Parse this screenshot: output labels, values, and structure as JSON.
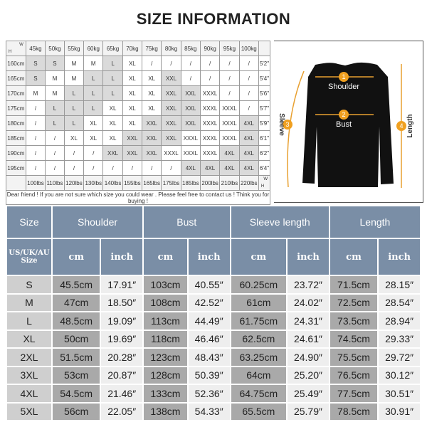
{
  "title": "SIZE INFORMATION",
  "grid": {
    "corner": {
      "h": "H",
      "w": "W"
    },
    "weights": [
      "45kg",
      "50kg",
      "55kg",
      "60kg",
      "65kg",
      "70kg",
      "75kg",
      "80kg",
      "85kg",
      "90kg",
      "95kg",
      "100kg"
    ],
    "rows": [
      {
        "height": "160cm",
        "feet": "5'2\"",
        "sizes": [
          "S",
          "S",
          "M",
          "M",
          "L",
          "XL",
          "/",
          "/",
          "/",
          "/",
          "/",
          "/"
        ]
      },
      {
        "height": "165cm",
        "feet": "5'4\"",
        "sizes": [
          "S",
          "M",
          "M",
          "L",
          "L",
          "XL",
          "XL",
          "XXL",
          "/",
          "/",
          "/",
          "/"
        ]
      },
      {
        "height": "170cm",
        "feet": "5'6\"",
        "sizes": [
          "M",
          "M",
          "L",
          "L",
          "L",
          "XL",
          "XL",
          "XXL",
          "XXL",
          "XXXL",
          "/",
          "/"
        ]
      },
      {
        "height": "175cm",
        "feet": "5'7\"",
        "sizes": [
          "/",
          "L",
          "L",
          "L",
          "XL",
          "XL",
          "XL",
          "XXL",
          "XXL",
          "XXXL",
          "XXXL",
          "/"
        ]
      },
      {
        "height": "180cm",
        "feet": "5'9\"",
        "sizes": [
          "/",
          "L",
          "L",
          "XL",
          "XL",
          "XL",
          "XXL",
          "XXL",
          "XXL",
          "XXXL",
          "XXXL",
          "4XL"
        ]
      },
      {
        "height": "185cm",
        "feet": "6'1\"",
        "sizes": [
          "/",
          "/",
          "XL",
          "XL",
          "XL",
          "XXL",
          "XXL",
          "XXL",
          "XXXL",
          "XXXL",
          "XXXL",
          "4XL"
        ]
      },
      {
        "height": "190cm",
        "feet": "6'2\"",
        "sizes": [
          "/",
          "/",
          "/",
          "/",
          "XXL",
          "XXL",
          "XXL",
          "XXXL",
          "XXXL",
          "XXXL",
          "4XL",
          "4XL"
        ]
      },
      {
        "height": "195cm",
        "feet": "6'4\"",
        "sizes": [
          "/",
          "/",
          "/",
          "/",
          "/",
          "/",
          "/",
          "/",
          "4XL",
          "4XL",
          "4XL",
          "4XL"
        ]
      }
    ],
    "lbs": [
      "100lbs",
      "110lbs",
      "120lbs",
      "130lbs",
      "140lbs",
      "155lbs",
      "165lbs",
      "175lbs",
      "185lbs",
      "200lbs",
      "210lbs",
      "220lbs"
    ],
    "note": "Dear friend ! If you are not sure which size you could wear . Please feel free to contact us ! Think you for buying !"
  },
  "diagram": {
    "shoulder": "Shoulder",
    "bust": "Bust",
    "sleeve": "Sleeve",
    "length": "Length",
    "numbers": [
      "1",
      "2",
      "3",
      "4"
    ],
    "accent": "#f0a020"
  },
  "table": {
    "headers": [
      "Size",
      "Shoulder",
      "Bust",
      "Sleeve length",
      "Length"
    ],
    "size_label": "US/UK/AU Size",
    "cm": "cm",
    "inch": "inch",
    "rows": [
      [
        "S",
        "45.5cm",
        "17.91″",
        "103cm",
        "40.55″",
        "60.25cm",
        "23.72″",
        "71.5cm",
        "28.15″"
      ],
      [
        "M",
        "47cm",
        "18.50″",
        "108cm",
        "42.52″",
        "61cm",
        "24.02″",
        "72.5cm",
        "28.54″"
      ],
      [
        "L",
        "48.5cm",
        "19.09″",
        "113cm",
        "44.49″",
        "61.75cm",
        "24.31″",
        "73.5cm",
        "28.94″"
      ],
      [
        "XL",
        "50cm",
        "19.69″",
        "118cm",
        "46.46″",
        "62.5cm",
        "24.61″",
        "74.5cm",
        "29.33″"
      ],
      [
        "2XL",
        "51.5cm",
        "20.28″",
        "123cm",
        "48.43″",
        "63.25cm",
        "24.90″",
        "75.5cm",
        "29.72″"
      ],
      [
        "3XL",
        "53cm",
        "20.87″",
        "128cm",
        "50.39″",
        "64cm",
        "25.20″",
        "76.5cm",
        "30.12″"
      ],
      [
        "4XL",
        "54.5cm",
        "21.46″",
        "133cm",
        "52.36″",
        "64.75cm",
        "25.49″",
        "77.5cm",
        "30.51″"
      ],
      [
        "5XL",
        "56cm",
        "22.05″",
        "138cm",
        "54.33″",
        "65.5cm",
        "25.79″",
        "78.5cm",
        "30.91″"
      ]
    ]
  }
}
